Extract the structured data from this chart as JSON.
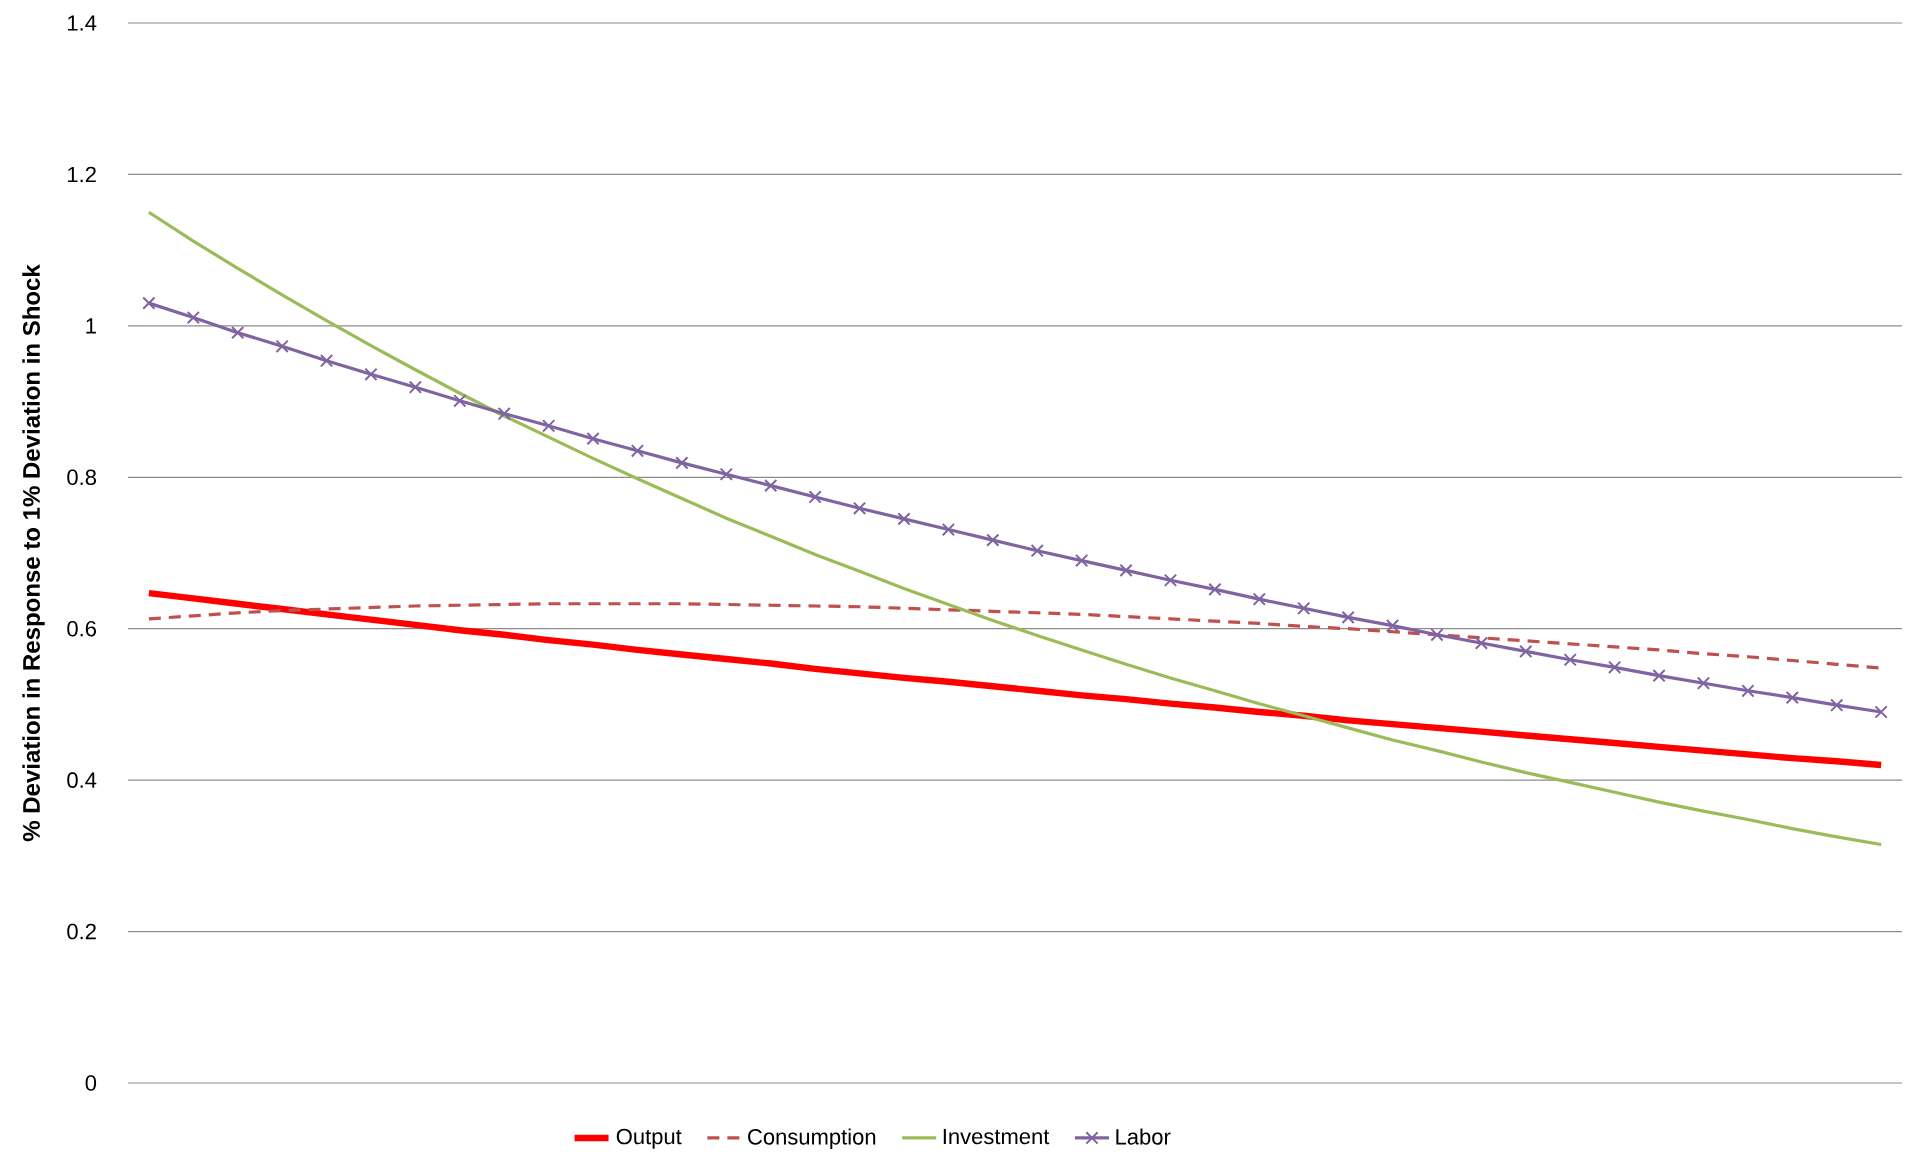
{
  "chart_data": {
    "type": "line",
    "ylabel": "% Deviation in Response to 1% Deviation in Shock",
    "categories": [
      null,
      null,
      null,
      null,
      null,
      null,
      null,
      null,
      null,
      null,
      null,
      null,
      null,
      null,
      null,
      null,
      null,
      null,
      null,
      null,
      null,
      null,
      null,
      null,
      null,
      null,
      null,
      null,
      null,
      null,
      null,
      null,
      null,
      null,
      null,
      null,
      null,
      null,
      null,
      null
    ],
    "ylim": [
      0,
      1.4
    ],
    "yticks": [
      0,
      0.2,
      0.4,
      0.6,
      0.8,
      1,
      1.2,
      1.4
    ],
    "grid": "y",
    "legend": "bottom",
    "tick_labels": "y",
    "series": [
      {
        "name": "Output",
        "color": "#ff0000",
        "values": [
          0.647,
          0.64,
          0.633,
          0.626,
          0.619,
          0.612,
          0.605,
          0.598,
          0.592,
          0.585,
          0.579,
          0.572,
          0.566,
          0.56,
          0.554,
          0.547,
          0.541,
          0.535,
          0.53,
          0.524,
          0.518,
          0.512,
          0.507,
          0.501,
          0.496,
          0.49,
          0.485,
          0.479,
          0.474,
          0.469,
          0.464,
          0.459,
          0.454,
          0.449,
          0.444,
          0.439,
          0.434,
          0.429,
          0.425,
          0.42
        ]
      },
      {
        "name": "Consumption",
        "color": "#c0504d",
        "line_style": "dashed",
        "values": [
          0.613,
          0.617,
          0.621,
          0.624,
          0.626,
          0.628,
          0.63,
          0.631,
          0.632,
          0.633,
          0.633,
          0.633,
          0.633,
          0.632,
          0.631,
          0.63,
          0.629,
          0.627,
          0.625,
          0.623,
          0.621,
          0.619,
          0.616,
          0.613,
          0.61,
          0.607,
          0.603,
          0.6,
          0.596,
          0.592,
          0.588,
          0.584,
          0.58,
          0.576,
          0.572,
          0.567,
          0.563,
          0.558,
          0.553,
          0.548
        ]
      },
      {
        "name": "Investment",
        "color": "#9bbb59",
        "values": [
          1.15,
          1.112,
          1.076,
          1.041,
          1.007,
          0.974,
          0.942,
          0.911,
          0.881,
          0.853,
          0.825,
          0.798,
          0.772,
          0.746,
          0.722,
          0.698,
          0.676,
          0.653,
          0.632,
          0.611,
          0.591,
          0.572,
          0.553,
          0.535,
          0.518,
          0.501,
          0.485,
          0.469,
          0.453,
          0.439,
          0.424,
          0.41,
          0.397,
          0.384,
          0.371,
          0.359,
          0.348,
          0.336,
          0.325,
          0.315
        ]
      },
      {
        "name": "Labor",
        "color": "#8064a2",
        "marker": "cross",
        "values": [
          1.03,
          1.011,
          0.991,
          0.973,
          0.954,
          0.936,
          0.919,
          0.901,
          0.884,
          0.868,
          0.851,
          0.835,
          0.819,
          0.804,
          0.789,
          0.774,
          0.759,
          0.745,
          0.731,
          0.717,
          0.703,
          0.69,
          0.677,
          0.664,
          0.652,
          0.639,
          0.627,
          0.615,
          0.604,
          0.592,
          0.581,
          0.57,
          0.559,
          0.549,
          0.538,
          0.528,
          0.518,
          0.509,
          0.499,
          0.49
        ]
      }
    ]
  }
}
